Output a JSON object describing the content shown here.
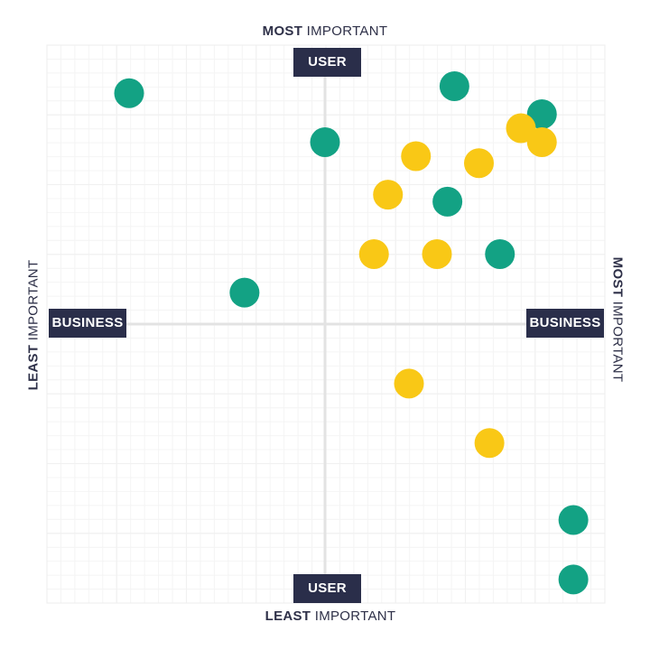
{
  "labels": {
    "top_bold": "MOST",
    "top_rest": " IMPORTANT",
    "bottom_bold": "LEAST",
    "bottom_rest": " IMPORTANT",
    "left_bold": "LEAST",
    "left_rest": " IMPORTANT",
    "right_bold": "MOST",
    "right_rest": " IMPORTANT",
    "user_top": "USER",
    "user_bottom": "USER",
    "business_left": "BUSINESS",
    "business_right": "BUSINESS"
  },
  "colors": {
    "green": "#13a284",
    "yellow": "#f9c816",
    "tag_bg": "#2a2e4a",
    "axis": "#e3e3e3",
    "grid": "#f1f1f1",
    "text": "#2e3048"
  },
  "chart_data": {
    "type": "scatter",
    "x_axis": "BUSINESS",
    "y_axis": "USER",
    "xlim": [
      -4,
      4
    ],
    "ylim": [
      -4,
      4
    ],
    "grid": true,
    "series": [
      {
        "color": "green",
        "points": [
          [
            -2.8,
            3.3
          ],
          [
            1.85,
            3.4
          ],
          [
            3.1,
            3.0
          ],
          [
            0.0,
            2.6
          ],
          [
            1.75,
            1.75
          ],
          [
            2.5,
            1.0
          ],
          [
            -1.15,
            0.45
          ],
          [
            3.55,
            -2.8
          ],
          [
            3.55,
            -3.65
          ]
        ]
      },
      {
        "color": "yellow",
        "points": [
          [
            2.8,
            2.8
          ],
          [
            3.1,
            2.6
          ],
          [
            1.3,
            2.4
          ],
          [
            2.2,
            2.3
          ],
          [
            0.9,
            1.85
          ],
          [
            0.7,
            1.0
          ],
          [
            1.6,
            1.0
          ],
          [
            1.2,
            -0.85
          ],
          [
            2.35,
            -1.7
          ]
        ]
      }
    ]
  }
}
